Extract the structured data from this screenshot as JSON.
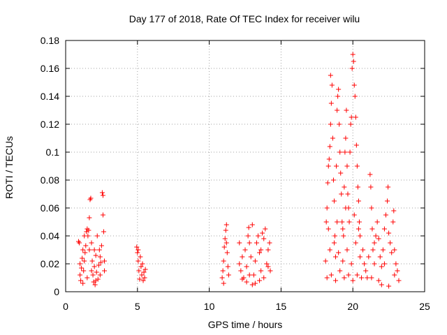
{
  "chart_data": {
    "type": "scatter",
    "title": "Day 177 of 2018, Rate Of TEC Index for receiver wilu",
    "xlabel": "GPS time / hours",
    "ylabel": "ROTI / TECUs",
    "xlim": [
      0,
      25
    ],
    "ylim": [
      0,
      0.18
    ],
    "x_ticks": [
      0,
      5,
      10,
      15,
      20,
      25
    ],
    "y_ticks": [
      0,
      0.02,
      0.04,
      0.06,
      0.08,
      0.1,
      0.12,
      0.14,
      0.16,
      0.18
    ],
    "x_tick_labels": [
      "0",
      "5",
      "10",
      "15",
      "20",
      "25"
    ],
    "y_tick_labels": [
      "0",
      "0.02",
      "0.04",
      "0.06",
      "0.08",
      "0.1",
      "0.12",
      "0.14",
      "0.16",
      "0.18"
    ],
    "grid": true,
    "marker": "+",
    "color": "#ff0000",
    "series": [
      {
        "name": "ROTI",
        "points": [
          [
            0.9,
            0.036
          ],
          [
            0.95,
            0.035
          ],
          [
            1.0,
            0.02
          ],
          [
            1.0,
            0.012
          ],
          [
            1.05,
            0.008
          ],
          [
            1.1,
            0.017
          ],
          [
            1.15,
            0.024
          ],
          [
            1.2,
            0.03
          ],
          [
            1.25,
            0.015
          ],
          [
            1.3,
            0.022
          ],
          [
            1.35,
            0.028
          ],
          [
            1.4,
            0.033
          ],
          [
            1.45,
            0.043
          ],
          [
            1.5,
            0.045
          ],
          [
            1.55,
            0.04
          ],
          [
            1.6,
            0.044
          ],
          [
            1.65,
            0.03
          ],
          [
            1.7,
            0.066
          ],
          [
            1.75,
            0.067
          ],
          [
            1.65,
            0.053
          ],
          [
            1.8,
            0.035
          ],
          [
            1.85,
            0.022
          ],
          [
            1.9,
            0.012
          ],
          [
            1.95,
            0.007
          ],
          [
            2.0,
            0.018
          ],
          [
            2.05,
            0.005
          ],
          [
            2.1,
            0.026
          ],
          [
            2.15,
            0.014
          ],
          [
            2.2,
            0.04
          ],
          [
            2.25,
            0.009
          ],
          [
            2.3,
            0.019
          ],
          [
            2.35,
            0.03
          ],
          [
            2.4,
            0.012
          ],
          [
            2.45,
            0.021
          ],
          [
            2.5,
            0.033
          ],
          [
            2.55,
            0.071
          ],
          [
            2.6,
            0.055
          ],
          [
            2.6,
            0.069
          ],
          [
            2.65,
            0.043
          ],
          [
            2.7,
            0.015
          ],
          [
            2.7,
            0.022
          ],
          [
            1.2,
            0.006
          ],
          [
            1.5,
            0.01
          ],
          [
            1.8,
            0.015
          ],
          [
            2.1,
            0.008
          ],
          [
            2.4,
            0.025
          ],
          [
            1.3,
            0.04
          ],
          [
            2.0,
            0.03
          ],
          [
            4.95,
            0.032
          ],
          [
            5.0,
            0.028
          ],
          [
            5.05,
            0.022
          ],
          [
            5.1,
            0.015
          ],
          [
            5.15,
            0.009
          ],
          [
            5.2,
            0.025
          ],
          [
            5.25,
            0.018
          ],
          [
            5.3,
            0.012
          ],
          [
            5.35,
            0.02
          ],
          [
            5.4,
            0.008
          ],
          [
            5.45,
            0.014
          ],
          [
            5.5,
            0.01
          ],
          [
            5.55,
            0.016
          ],
          [
            5.05,
            0.03
          ],
          [
            10.9,
            0.01
          ],
          [
            10.95,
            0.015
          ],
          [
            11.0,
            0.022
          ],
          [
            11.05,
            0.032
          ],
          [
            11.1,
            0.038
          ],
          [
            11.15,
            0.044
          ],
          [
            11.2,
            0.048
          ],
          [
            11.25,
            0.028
          ],
          [
            11.3,
            0.018
          ],
          [
            11.35,
            0.012
          ],
          [
            11.0,
            0.006
          ],
          [
            11.2,
            0.035
          ],
          [
            12.1,
            0.02
          ],
          [
            12.2,
            0.015
          ],
          [
            12.3,
            0.025
          ],
          [
            12.4,
            0.01
          ],
          [
            12.5,
            0.03
          ],
          [
            12.6,
            0.018
          ],
          [
            12.7,
            0.04
          ],
          [
            12.75,
            0.046
          ],
          [
            12.8,
            0.035
          ],
          [
            12.9,
            0.025
          ],
          [
            13.0,
            0.048
          ],
          [
            13.1,
            0.012
          ],
          [
            13.2,
            0.022
          ],
          [
            13.3,
            0.035
          ],
          [
            13.4,
            0.04
          ],
          [
            13.5,
            0.028
          ],
          [
            13.6,
            0.015
          ],
          [
            13.7,
            0.042
          ],
          [
            13.8,
            0.038
          ],
          [
            13.9,
            0.045
          ],
          [
            14.0,
            0.02
          ],
          [
            14.1,
            0.03
          ],
          [
            14.2,
            0.035
          ],
          [
            14.25,
            0.015
          ],
          [
            12.6,
            0.007
          ],
          [
            13.0,
            0.005
          ],
          [
            13.5,
            0.008
          ],
          [
            12.3,
            0.009
          ],
          [
            13.8,
            0.01
          ],
          [
            14.1,
            0.018
          ],
          [
            12.8,
            0.012
          ],
          [
            13.2,
            0.006
          ],
          [
            12.1,
            0.035
          ],
          [
            13.6,
            0.03
          ],
          [
            18.1,
            0.022
          ],
          [
            18.15,
            0.05
          ],
          [
            18.2,
            0.06
          ],
          [
            18.25,
            0.078
          ],
          [
            18.3,
            0.09
          ],
          [
            18.35,
            0.095
          ],
          [
            18.4,
            0.104
          ],
          [
            18.45,
            0.12
          ],
          [
            18.5,
            0.135
          ],
          [
            18.45,
            0.155
          ],
          [
            18.55,
            0.148
          ],
          [
            18.6,
            0.11
          ],
          [
            18.65,
            0.08
          ],
          [
            18.7,
            0.065
          ],
          [
            18.75,
            0.04
          ],
          [
            18.8,
            0.025
          ],
          [
            18.85,
            0.09
          ],
          [
            18.9,
            0.13
          ],
          [
            18.95,
            0.14
          ],
          [
            19.0,
            0.145
          ],
          [
            19.05,
            0.12
          ],
          [
            19.1,
            0.1
          ],
          [
            19.15,
            0.085
          ],
          [
            19.2,
            0.07
          ],
          [
            19.25,
            0.05
          ],
          [
            19.3,
            0.045
          ],
          [
            19.35,
            0.04
          ],
          [
            19.4,
            0.075
          ],
          [
            19.45,
            0.1
          ],
          [
            19.5,
            0.11
          ],
          [
            19.55,
            0.13
          ],
          [
            19.6,
            0.09
          ],
          [
            19.65,
            0.07
          ],
          [
            19.7,
            0.06
          ],
          [
            19.75,
            0.05
          ],
          [
            19.8,
            0.1
          ],
          [
            19.85,
            0.12
          ],
          [
            19.9,
            0.125
          ],
          [
            19.95,
            0.16
          ],
          [
            20.0,
            0.17
          ],
          [
            20.05,
            0.165
          ],
          [
            20.1,
            0.148
          ],
          [
            20.15,
            0.14
          ],
          [
            20.2,
            0.125
          ],
          [
            20.25,
            0.105
          ],
          [
            20.3,
            0.09
          ],
          [
            20.35,
            0.075
          ],
          [
            20.4,
            0.065
          ],
          [
            20.45,
            0.05
          ],
          [
            20.5,
            0.04
          ],
          [
            18.2,
            0.01
          ],
          [
            18.5,
            0.012
          ],
          [
            18.8,
            0.008
          ],
          [
            19.1,
            0.015
          ],
          [
            19.4,
            0.01
          ],
          [
            19.7,
            0.012
          ],
          [
            20.0,
            0.008
          ],
          [
            20.3,
            0.012
          ],
          [
            20.6,
            0.01
          ],
          [
            18.4,
            0.03
          ],
          [
            18.7,
            0.035
          ],
          [
            19.0,
            0.028
          ],
          [
            19.3,
            0.022
          ],
          [
            19.6,
            0.03
          ],
          [
            19.9,
            0.02
          ],
          [
            20.2,
            0.035
          ],
          [
            20.5,
            0.025
          ],
          [
            18.3,
            0.045
          ],
          [
            18.9,
            0.05
          ],
          [
            19.5,
            0.06
          ],
          [
            20.1,
            0.055
          ],
          [
            20.4,
            0.045
          ],
          [
            20.7,
            0.03
          ],
          [
            20.8,
            0.02
          ],
          [
            20.9,
            0.015
          ],
          [
            21.0,
            0.01
          ],
          [
            21.1,
            0.025
          ],
          [
            21.2,
            0.084
          ],
          [
            21.25,
            0.075
          ],
          [
            21.3,
            0.06
          ],
          [
            21.35,
            0.045
          ],
          [
            21.4,
            0.03
          ],
          [
            21.5,
            0.02
          ],
          [
            21.6,
            0.04
          ],
          [
            21.7,
            0.05
          ],
          [
            21.8,
            0.038
          ],
          [
            21.9,
            0.025
          ],
          [
            22.0,
            0.018
          ],
          [
            22.1,
            0.03
          ],
          [
            22.2,
            0.045
          ],
          [
            22.3,
            0.055
          ],
          [
            22.4,
            0.065
          ],
          [
            22.45,
            0.075
          ],
          [
            22.5,
            0.042
          ],
          [
            22.6,
            0.035
          ],
          [
            22.7,
            0.028
          ],
          [
            22.8,
            0.05
          ],
          [
            22.85,
            0.058
          ],
          [
            22.9,
            0.03
          ],
          [
            23.0,
            0.02
          ],
          [
            23.1,
            0.015
          ],
          [
            23.2,
            0.008
          ],
          [
            22.0,
            0.005
          ],
          [
            22.5,
            0.004
          ],
          [
            21.3,
            0.01
          ],
          [
            21.8,
            0.008
          ],
          [
            22.9,
            0.012
          ],
          [
            21.5,
            0.035
          ],
          [
            22.2,
            0.02
          ]
        ]
      }
    ]
  }
}
